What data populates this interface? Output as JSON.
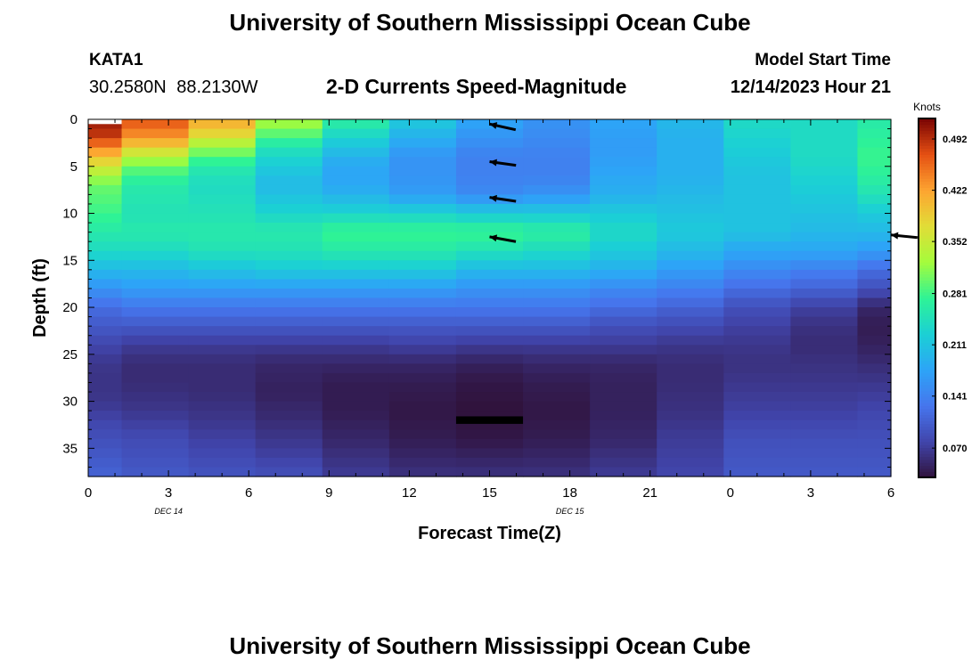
{
  "header": {
    "title": "University of Southern Mississippi Ocean Cube",
    "station_id": "KATA1",
    "coordinates": "30.2580N  88.2130W",
    "subtitle": "2-D Currents Speed-Magnitude",
    "model_start_label": "Model Start Time",
    "model_start_value": "12/14/2023 Hour 21"
  },
  "footer": {
    "title": "University of Southern Mississippi Ocean Cube"
  },
  "chart_data": {
    "type": "heatmap",
    "title": "2-D Currents Speed-Magnitude",
    "xlabel": "Forecast Time(Z)",
    "ylabel": "Depth (ft)",
    "x_hours_since_start": [
      0,
      3,
      6,
      9,
      12,
      15,
      18,
      21,
      24,
      27,
      30
    ],
    "x_tick_labels": [
      "0",
      "3",
      "6",
      "9",
      "12",
      "15",
      "18",
      "21",
      "0",
      "3",
      "6"
    ],
    "x_range": [
      0,
      30
    ],
    "date_labels": [
      {
        "at_tick": "0",
        "tick_index": 3,
        "text": "DEC 14"
      },
      {
        "at_tick": "0",
        "tick_index": 18,
        "text": "DEC 15"
      }
    ],
    "y_ticks": [
      0,
      5,
      10,
      15,
      20,
      25,
      30,
      35
    ],
    "y_range": [
      0,
      38
    ],
    "y_inverted": true,
    "colorbar": {
      "label": "Knots",
      "ticks": [
        "0.070",
        "0.141",
        "0.211",
        "0.281",
        "0.352",
        "0.422",
        "0.492"
      ],
      "tick_values": [
        0.07,
        0.141,
        0.211,
        0.281,
        0.352,
        0.422,
        0.492
      ],
      "range": [
        0.03,
        0.52
      ]
    },
    "columns": [
      {
        "x_start": -1.25,
        "x_end": 1.25,
        "profile": [
          [
            0,
            0.5
          ],
          [
            1,
            0.5
          ],
          [
            2,
            0.48
          ],
          [
            3,
            0.44
          ],
          [
            5,
            0.36
          ],
          [
            7,
            0.3
          ],
          [
            10,
            0.28
          ],
          [
            12,
            0.26
          ],
          [
            14,
            0.24
          ],
          [
            16,
            0.2
          ],
          [
            18,
            0.16
          ],
          [
            20,
            0.12
          ],
          [
            22,
            0.1
          ],
          [
            24,
            0.08
          ],
          [
            26,
            0.065
          ],
          [
            28,
            0.062
          ],
          [
            30,
            0.065
          ],
          [
            33,
            0.085
          ],
          [
            36,
            0.1
          ],
          [
            38,
            0.11
          ]
        ]
      },
      {
        "x_start": 1.25,
        "x_end": 3.75,
        "profile": [
          [
            0,
            0.47
          ],
          [
            2,
            0.43
          ],
          [
            3.5,
            0.36
          ],
          [
            5,
            0.3
          ],
          [
            7,
            0.26
          ],
          [
            10,
            0.25
          ],
          [
            12,
            0.26
          ],
          [
            14,
            0.24
          ],
          [
            16,
            0.2
          ],
          [
            18,
            0.17
          ],
          [
            20,
            0.13
          ],
          [
            22,
            0.1
          ],
          [
            24,
            0.07
          ],
          [
            26,
            0.055
          ],
          [
            28,
            0.055
          ],
          [
            31,
            0.065
          ],
          [
            34,
            0.085
          ],
          [
            38,
            0.1
          ]
        ]
      },
      {
        "x_start": 3.75,
        "x_end": 6.25,
        "profile": [
          [
            0,
            0.42
          ],
          [
            1.5,
            0.38
          ],
          [
            3,
            0.32
          ],
          [
            5,
            0.26
          ],
          [
            7,
            0.24
          ],
          [
            10,
            0.25
          ],
          [
            12,
            0.26
          ],
          [
            14,
            0.25
          ],
          [
            16,
            0.21
          ],
          [
            18,
            0.17
          ],
          [
            20,
            0.13
          ],
          [
            22,
            0.1
          ],
          [
            24,
            0.07
          ],
          [
            26,
            0.055
          ],
          [
            29,
            0.055
          ],
          [
            32,
            0.065
          ],
          [
            35,
            0.08
          ],
          [
            38,
            0.095
          ]
        ]
      },
      {
        "x_start": 6.25,
        "x_end": 8.75,
        "profile": [
          [
            0,
            0.33
          ],
          [
            1,
            0.31
          ],
          [
            3,
            0.25
          ],
          [
            5,
            0.22
          ],
          [
            7,
            0.2
          ],
          [
            9,
            0.22
          ],
          [
            12,
            0.26
          ],
          [
            14,
            0.25
          ],
          [
            16,
            0.22
          ],
          [
            18,
            0.17
          ],
          [
            20,
            0.13
          ],
          [
            22,
            0.1
          ],
          [
            24,
            0.07
          ],
          [
            26,
            0.05
          ],
          [
            29,
            0.045
          ],
          [
            32,
            0.055
          ],
          [
            35,
            0.07
          ],
          [
            38,
            0.09
          ]
        ]
      },
      {
        "x_start": 8.75,
        "x_end": 11.25,
        "profile": [
          [
            0,
            0.27
          ],
          [
            1.5,
            0.24
          ],
          [
            3,
            0.21
          ],
          [
            5,
            0.18
          ],
          [
            7,
            0.18
          ],
          [
            9,
            0.21
          ],
          [
            12,
            0.28
          ],
          [
            14,
            0.26
          ],
          [
            16,
            0.22
          ],
          [
            18,
            0.17
          ],
          [
            20,
            0.13
          ],
          [
            22,
            0.1
          ],
          [
            24,
            0.07
          ],
          [
            26,
            0.05
          ],
          [
            28,
            0.04
          ],
          [
            31,
            0.04
          ],
          [
            34,
            0.05
          ],
          [
            38,
            0.07
          ]
        ]
      },
      {
        "x_start": 11.25,
        "x_end": 13.75,
        "profile": [
          [
            0,
            0.22
          ],
          [
            2,
            0.19
          ],
          [
            4,
            0.16
          ],
          [
            6,
            0.16
          ],
          [
            8,
            0.17
          ],
          [
            10,
            0.23
          ],
          [
            12,
            0.28
          ],
          [
            14,
            0.26
          ],
          [
            16,
            0.22
          ],
          [
            18,
            0.17
          ],
          [
            20,
            0.13
          ],
          [
            22,
            0.1
          ],
          [
            24,
            0.075
          ],
          [
            26,
            0.05
          ],
          [
            28,
            0.04
          ],
          [
            31,
            0.035
          ],
          [
            34,
            0.04
          ],
          [
            38,
            0.06
          ]
        ]
      },
      {
        "x_start": 13.75,
        "x_end": 16.25,
        "profile": [
          [
            0,
            0.18
          ],
          [
            2,
            0.16
          ],
          [
            4,
            0.14
          ],
          [
            6,
            0.14
          ],
          [
            8,
            0.15
          ],
          [
            10,
            0.22
          ],
          [
            12,
            0.28
          ],
          [
            14,
            0.25
          ],
          [
            16,
            0.2
          ],
          [
            18,
            0.16
          ],
          [
            20,
            0.13
          ],
          [
            22,
            0.1
          ],
          [
            24,
            0.07
          ],
          [
            26,
            0.045
          ],
          [
            28,
            0.035
          ],
          [
            31,
            0.03
          ],
          [
            34,
            0.035
          ],
          [
            38,
            0.06
          ]
        ]
      },
      {
        "x_start": 16.25,
        "x_end": 18.75,
        "profile": [
          [
            0,
            0.16
          ],
          [
            2,
            0.15
          ],
          [
            4,
            0.14
          ],
          [
            6,
            0.14
          ],
          [
            8,
            0.16
          ],
          [
            10,
            0.22
          ],
          [
            12,
            0.27
          ],
          [
            14,
            0.24
          ],
          [
            16,
            0.2
          ],
          [
            18,
            0.16
          ],
          [
            20,
            0.13
          ],
          [
            22,
            0.1
          ],
          [
            24,
            0.07
          ],
          [
            26,
            0.05
          ],
          [
            28,
            0.04
          ],
          [
            31,
            0.035
          ],
          [
            34,
            0.04
          ],
          [
            38,
            0.06
          ]
        ]
      },
      {
        "x_start": 18.75,
        "x_end": 21.25,
        "profile": [
          [
            0,
            0.18
          ],
          [
            2,
            0.17
          ],
          [
            4,
            0.17
          ],
          [
            6,
            0.18
          ],
          [
            8,
            0.19
          ],
          [
            10,
            0.22
          ],
          [
            12,
            0.24
          ],
          [
            14,
            0.22
          ],
          [
            16,
            0.19
          ],
          [
            18,
            0.15
          ],
          [
            20,
            0.12
          ],
          [
            22,
            0.09
          ],
          [
            24,
            0.07
          ],
          [
            26,
            0.05
          ],
          [
            28,
            0.045
          ],
          [
            31,
            0.045
          ],
          [
            34,
            0.05
          ],
          [
            38,
            0.07
          ]
        ]
      },
      {
        "x_start": 21.25,
        "x_end": 23.75,
        "profile": [
          [
            0,
            0.2
          ],
          [
            2,
            0.19
          ],
          [
            4,
            0.19
          ],
          [
            6,
            0.19
          ],
          [
            8,
            0.2
          ],
          [
            10,
            0.21
          ],
          [
            12,
            0.22
          ],
          [
            14,
            0.2
          ],
          [
            16,
            0.17
          ],
          [
            18,
            0.14
          ],
          [
            20,
            0.11
          ],
          [
            22,
            0.085
          ],
          [
            24,
            0.065
          ],
          [
            26,
            0.055
          ],
          [
            28,
            0.055
          ],
          [
            31,
            0.06
          ],
          [
            34,
            0.07
          ],
          [
            38,
            0.08
          ]
        ]
      },
      {
        "x_start": 23.75,
        "x_end": 26.25,
        "profile": [
          [
            0,
            0.24
          ],
          [
            2,
            0.23
          ],
          [
            4,
            0.22
          ],
          [
            6,
            0.21
          ],
          [
            8,
            0.21
          ],
          [
            10,
            0.21
          ],
          [
            12,
            0.21
          ],
          [
            14,
            0.18
          ],
          [
            16,
            0.15
          ],
          [
            18,
            0.12
          ],
          [
            20,
            0.09
          ],
          [
            22,
            0.075
          ],
          [
            24,
            0.065
          ],
          [
            26,
            0.06
          ],
          [
            28,
            0.065
          ],
          [
            31,
            0.075
          ],
          [
            34,
            0.09
          ],
          [
            38,
            0.1
          ]
        ]
      },
      {
        "x_start": 26.25,
        "x_end": 28.75,
        "profile": [
          [
            0,
            0.24
          ],
          [
            2,
            0.24
          ],
          [
            4,
            0.24
          ],
          [
            6,
            0.23
          ],
          [
            8,
            0.22
          ],
          [
            10,
            0.21
          ],
          [
            12,
            0.2
          ],
          [
            14,
            0.18
          ],
          [
            16,
            0.14
          ],
          [
            18,
            0.11
          ],
          [
            20,
            0.075
          ],
          [
            22,
            0.06
          ],
          [
            24,
            0.055
          ],
          [
            26,
            0.06
          ],
          [
            28,
            0.065
          ],
          [
            31,
            0.075
          ],
          [
            34,
            0.09
          ],
          [
            38,
            0.1
          ]
        ]
      },
      {
        "x_start": 28.75,
        "x_end": 31.25,
        "profile": [
          [
            0,
            0.26
          ],
          [
            2,
            0.27
          ],
          [
            4,
            0.28
          ],
          [
            6,
            0.27
          ],
          [
            8,
            0.25
          ],
          [
            10,
            0.22
          ],
          [
            12,
            0.2
          ],
          [
            14,
            0.17
          ],
          [
            16,
            0.12
          ],
          [
            18,
            0.09
          ],
          [
            20,
            0.05
          ],
          [
            22,
            0.04
          ],
          [
            24,
            0.045
          ],
          [
            26,
            0.055
          ],
          [
            28,
            0.065
          ],
          [
            31,
            0.08
          ],
          [
            34,
            0.09
          ],
          [
            38,
            0.1
          ]
        ]
      }
    ],
    "masked_region": {
      "x": [
        -1.25,
        1.25
      ],
      "y": [
        0,
        0.5
      ],
      "color": "#ffffff"
    },
    "black_bar": {
      "x": [
        13.75,
        16.25
      ],
      "y": [
        31.6,
        32.4
      ],
      "color": "#000000"
    },
    "vectors": [
      {
        "x": 15,
        "depth": 0.5,
        "u": -1,
        "v": 0.22
      },
      {
        "x": 15,
        "depth": 4.5,
        "u": -1,
        "v": 0.14
      },
      {
        "x": 15,
        "depth": 8.3,
        "u": -1,
        "v": 0.15
      },
      {
        "x": 15,
        "depth": 12.5,
        "u": -1,
        "v": 0.18
      },
      {
        "x": 30,
        "depth": 12.3,
        "u": -1,
        "v": 0.1
      }
    ]
  }
}
